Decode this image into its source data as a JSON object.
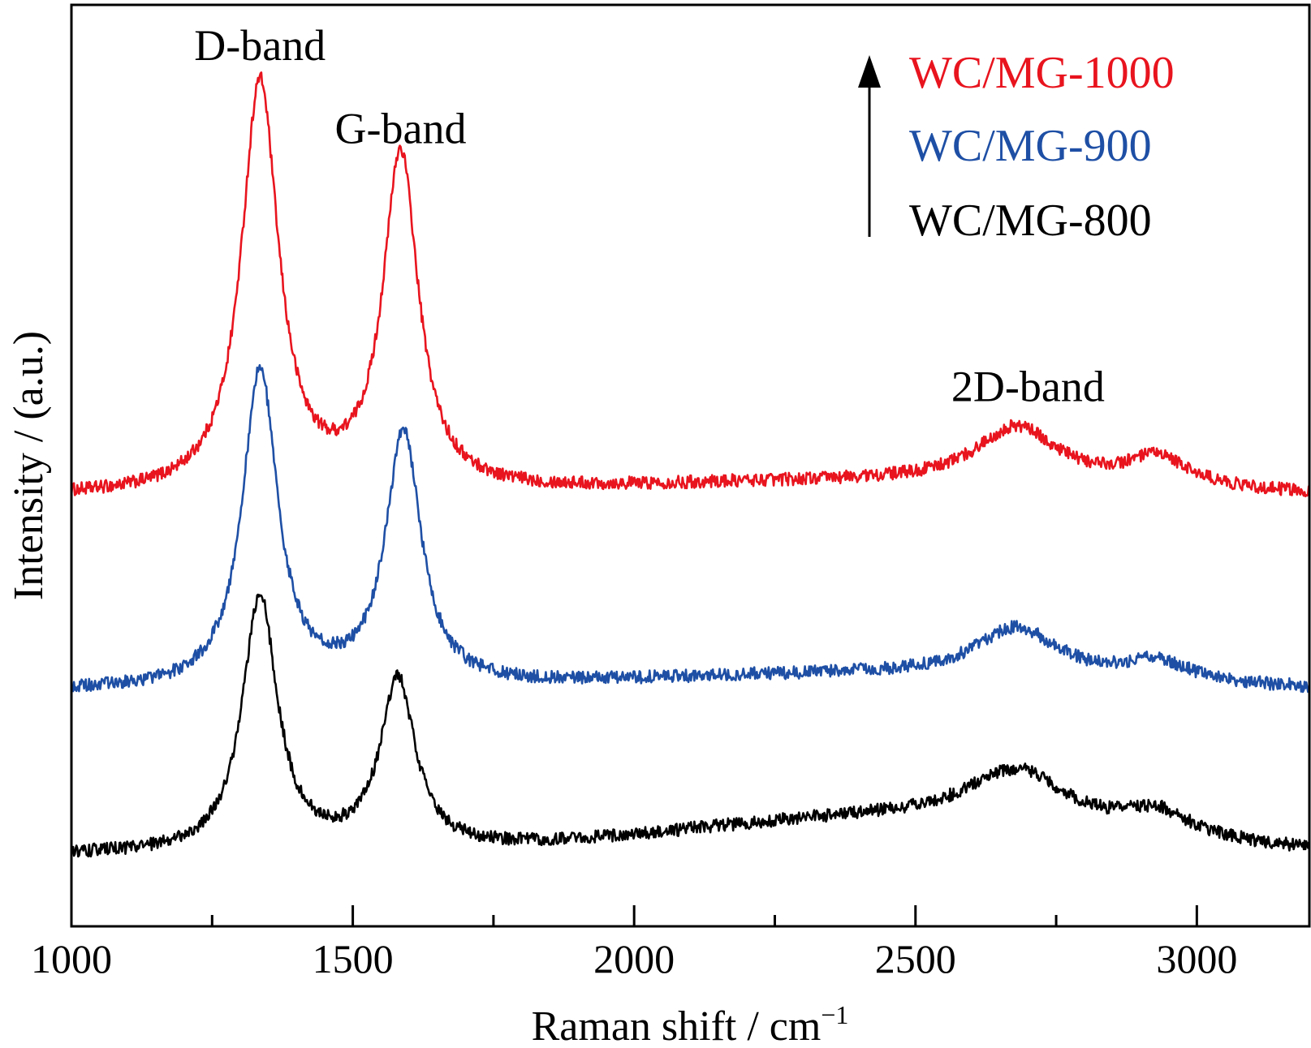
{
  "chart_data": {
    "type": "line",
    "title": "",
    "xlabel": "Raman shift / cm",
    "xlabel_superscript": "−1",
    "ylabel": "Intensity / (a.u.)",
    "xlim": [
      1000,
      3200
    ],
    "ylim": [
      0,
      100
    ],
    "x_ticks": [
      1000,
      1500,
      2000,
      2500,
      3000
    ],
    "x_minor_ticks": [
      1250,
      1750,
      2250,
      2750
    ],
    "y_ticks_shown": false,
    "grid": false,
    "legend_position": "top-right",
    "legend_arrow": "up",
    "annotations": [
      {
        "text": "D-band",
        "x": 1335,
        "y": 94
      },
      {
        "text": "G-band",
        "x": 1585,
        "y": 85
      },
      {
        "text": "2D-band",
        "x": 2700,
        "y": 57
      }
    ],
    "series": [
      {
        "name": "WC/MG-1000",
        "color": "#e8141e",
        "base": 46.6,
        "peaks": [
          {
            "center": 1335,
            "height": 44.6,
            "width": 40
          },
          {
            "center": 1585,
            "height": 36.5,
            "width": 38
          },
          {
            "center": 2680,
            "height": 6.2,
            "width": 90
          },
          {
            "center": 2930,
            "height": 3.2,
            "width": 70
          }
        ],
        "baseline_hump": {
          "center": 2400,
          "height": 1.5,
          "width": 600
        }
      },
      {
        "name": "WC/MG-900",
        "color": "#1e4fa5",
        "base": 25.5,
        "peaks": [
          {
            "center": 1335,
            "height": 34.5,
            "width": 38
          },
          {
            "center": 1590,
            "height": 27.5,
            "width": 38
          },
          {
            "center": 2680,
            "height": 5.4,
            "width": 90
          },
          {
            "center": 2930,
            "height": 2.2,
            "width": 70
          }
        ],
        "baseline_hump": {
          "center": 2400,
          "height": 1.7,
          "width": 600
        }
      },
      {
        "name": "WC/MG-800",
        "color": "#000000",
        "base": 7.7,
        "peaks": [
          {
            "center": 1335,
            "height": 27.8,
            "width": 38
          },
          {
            "center": 1580,
            "height": 18.5,
            "width": 38
          },
          {
            "center": 2680,
            "height": 6.0,
            "width": 110
          },
          {
            "center": 2930,
            "height": 2.6,
            "width": 70
          }
        ],
        "baseline_hump": {
          "center": 2450,
          "height": 3.8,
          "width": 550
        }
      }
    ]
  }
}
